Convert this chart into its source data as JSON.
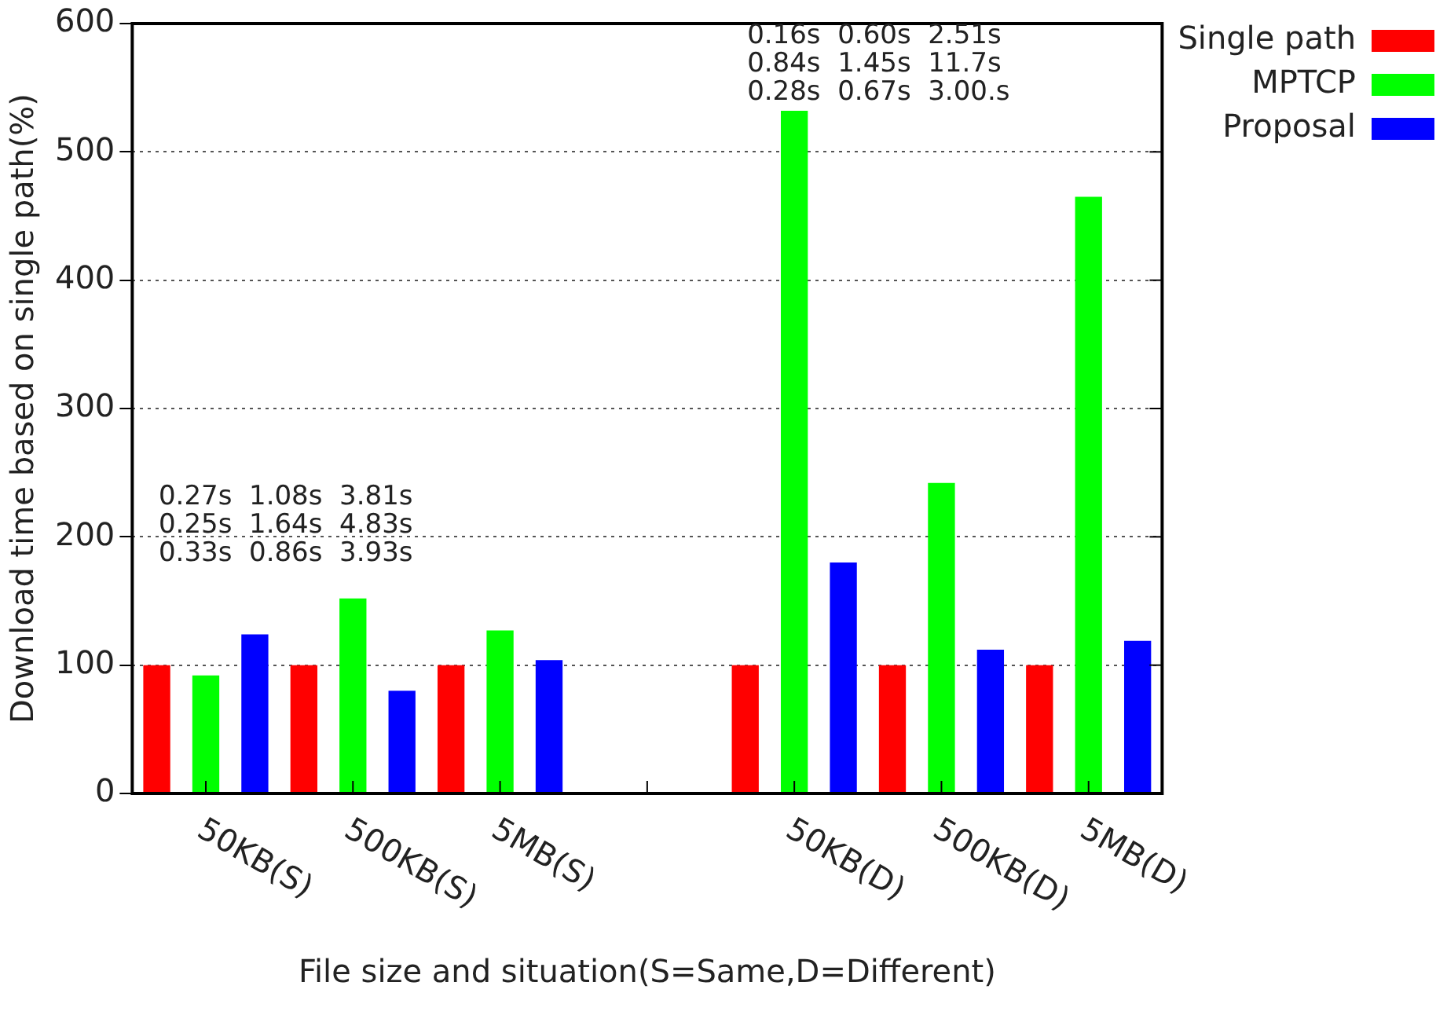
{
  "chart_data": {
    "type": "bar",
    "xlabel": "File size and situation(S=Same,D=Different)",
    "ylabel": "Download time based on single path(%)",
    "categories": [
      "50KB(S)",
      "500KB(S)",
      "5MB(S)",
      null,
      "50KB(D)",
      "500KB(D)",
      "5MB(D)"
    ],
    "series": [
      {
        "name": "Single path",
        "color": "#ff0000",
        "values": [
          100,
          100,
          100,
          null,
          100,
          100,
          100
        ]
      },
      {
        "name": "MPTCP",
        "color": "#00ff00",
        "values": [
          92,
          152,
          127,
          null,
          532,
          242,
          465
        ]
      },
      {
        "name": "Proposal",
        "color": "#0000ff",
        "values": [
          124,
          80,
          104,
          null,
          180,
          112,
          119
        ]
      }
    ],
    "ylim": [
      0,
      600
    ],
    "yticks": [
      0,
      100,
      200,
      300,
      400,
      500,
      600
    ],
    "grid": "y",
    "legend": "top right",
    "annotations": [
      "0.27s  1.08s  3.81s",
      "0.25s  1.64s  4.83s",
      "0.33s  0.86s  3.93s",
      "0.16s  0.60s  2.51s",
      "0.84s  1.45s  11.7s",
      "0.28s  0.67s  3.00.s"
    ]
  }
}
